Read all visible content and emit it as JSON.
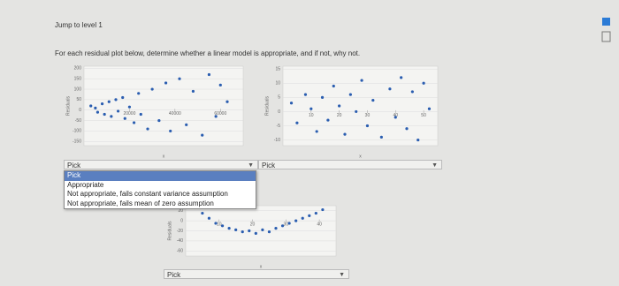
{
  "header": {
    "level": "Jump to level 1"
  },
  "instructions": "For each residual plot below, determine whether a linear model is appropriate, and if not, why not.",
  "plots": [
    {
      "ylabel": "Residuals",
      "xlabel": "x",
      "xlim": [
        0,
        70000
      ],
      "ylim": [
        -170,
        210
      ],
      "yticks": [
        200,
        150,
        100,
        50,
        0,
        -50,
        -100,
        -150
      ],
      "xticks": [
        20000,
        40000,
        60000
      ],
      "points": [
        [
          3000,
          20
        ],
        [
          5000,
          10
        ],
        [
          6000,
          -10
        ],
        [
          8000,
          30
        ],
        [
          9000,
          -20
        ],
        [
          11000,
          40
        ],
        [
          12000,
          -30
        ],
        [
          14000,
          50
        ],
        [
          15000,
          -5
        ],
        [
          17000,
          60
        ],
        [
          18000,
          -40
        ],
        [
          20000,
          15
        ],
        [
          22000,
          -60
        ],
        [
          24000,
          80
        ],
        [
          25000,
          -20
        ],
        [
          28000,
          -90
        ],
        [
          30000,
          100
        ],
        [
          33000,
          -50
        ],
        [
          36000,
          130
        ],
        [
          38000,
          -100
        ],
        [
          42000,
          150
        ],
        [
          45000,
          -70
        ],
        [
          48000,
          90
        ],
        [
          52000,
          -120
        ],
        [
          55000,
          170
        ],
        [
          58000,
          -30
        ],
        [
          60000,
          120
        ],
        [
          63000,
          40
        ]
      ]
    },
    {
      "ylabel": "Residuals",
      "xlabel": "x",
      "xlim": [
        0,
        55
      ],
      "ylim": [
        -12,
        16
      ],
      "yticks": [
        15,
        10,
        5,
        0,
        -5,
        -10
      ],
      "xticks": [
        10,
        20,
        30,
        40,
        50
      ],
      "points": [
        [
          3,
          3
        ],
        [
          5,
          -4
        ],
        [
          8,
          6
        ],
        [
          10,
          1
        ],
        [
          12,
          -7
        ],
        [
          14,
          5
        ],
        [
          16,
          -3
        ],
        [
          18,
          9
        ],
        [
          20,
          2
        ],
        [
          22,
          -8
        ],
        [
          24,
          6
        ],
        [
          26,
          0
        ],
        [
          28,
          11
        ],
        [
          30,
          -5
        ],
        [
          32,
          4
        ],
        [
          35,
          -9
        ],
        [
          38,
          8
        ],
        [
          40,
          -2
        ],
        [
          42,
          12
        ],
        [
          44,
          -6
        ],
        [
          46,
          7
        ],
        [
          48,
          -10
        ],
        [
          50,
          10
        ],
        [
          52,
          1
        ]
      ]
    },
    {
      "ylabel": "Residuals",
      "xlabel": "x",
      "xlim": [
        0,
        45
      ],
      "ylim": [
        -70,
        30
      ],
      "yticks": [
        20,
        0,
        -20,
        -40,
        -60
      ],
      "xticks": [
        10,
        20,
        30,
        40
      ],
      "points": [
        [
          5,
          15
        ],
        [
          7,
          5
        ],
        [
          9,
          -5
        ],
        [
          11,
          -10
        ],
        [
          13,
          -15
        ],
        [
          15,
          -18
        ],
        [
          17,
          -22
        ],
        [
          19,
          -20
        ],
        [
          21,
          -25
        ],
        [
          23,
          -18
        ],
        [
          25,
          -22
        ],
        [
          27,
          -15
        ],
        [
          29,
          -10
        ],
        [
          31,
          -5
        ],
        [
          33,
          0
        ],
        [
          35,
          5
        ],
        [
          37,
          10
        ],
        [
          39,
          15
        ],
        [
          41,
          22
        ]
      ]
    }
  ],
  "dropdowns": [
    "Pick",
    "Pick",
    "Pick"
  ],
  "options": [
    "Pick",
    "Appropriate",
    "Not appropriate, fails constant variance assumption",
    "Not appropriate, fails mean of zero assumption"
  ]
}
